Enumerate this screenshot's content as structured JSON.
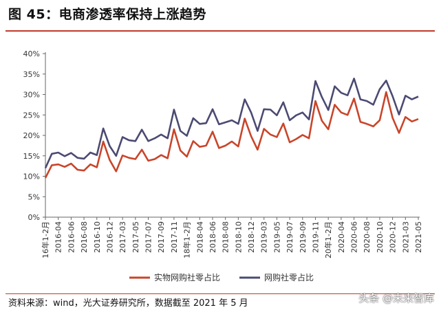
{
  "header": {
    "title": "图 45：电商渗透率保持上涨趋势"
  },
  "footer": {
    "source": "资料来源：wind，光大证券研究所，数据截至 2021 年 5 月",
    "watermark": "头条 @未来智库"
  },
  "colors": {
    "accent": "#c0392b",
    "series_physical": "#c9452a",
    "series_online": "#4b4a72"
  },
  "chart_data": {
    "type": "line",
    "ylim": [
      0,
      40
    ],
    "y_ticks": [
      "0%",
      "5%",
      "10%",
      "15%",
      "20%",
      "25%",
      "30%",
      "35%",
      "40%"
    ],
    "x_tick_labels": [
      "16年1-2月",
      "2016-04",
      "2016-06",
      "2016-08",
      "2016-10",
      "2016-12",
      "2017-03",
      "2017-05",
      "2017-07",
      "2017-09",
      "2017-11",
      "18年1-2月",
      "2018-04",
      "2018-06",
      "2018-08",
      "2018-10",
      "2018-12",
      "2019-03",
      "2019-05",
      "2019-07",
      "2019-09",
      "2019-11",
      "20年1-2月",
      "2020-04",
      "2020-06",
      "2020-08",
      "2020-10",
      "2020-12",
      "2021-03",
      "2021-05"
    ],
    "x": [
      "16年1-2月",
      "2016-03",
      "2016-04",
      "2016-05",
      "2016-06",
      "2016-07",
      "2016-08",
      "2016-09",
      "2016-10",
      "2016-11",
      "2016-12",
      "17年1-2月",
      "2017-03",
      "2017-04",
      "2017-05",
      "2017-06",
      "2017-07",
      "2017-08",
      "2017-09",
      "2017-10",
      "2017-11",
      "2017-12",
      "18年1-2月",
      "2018-03",
      "2018-04",
      "2018-05",
      "2018-06",
      "2018-07",
      "2018-08",
      "2018-09",
      "2018-10",
      "2018-11",
      "2018-12",
      "19年1-2月",
      "2019-03",
      "2019-04",
      "2019-05",
      "2019-06",
      "2019-07",
      "2019-08",
      "2019-09",
      "2019-10",
      "2019-11",
      "2019-12",
      "20年1-2月",
      "2020-03",
      "2020-04",
      "2020-05",
      "2020-06",
      "2020-07",
      "2020-08",
      "2020-09",
      "2020-10",
      "2020-11",
      "2020-12",
      "21年1-2月",
      "2021-03",
      "2021-04",
      "2021-05"
    ],
    "series": [
      {
        "name": "实物网购社零占比",
        "values": [
          9.6,
          12.7,
          12.9,
          12.3,
          13.1,
          11.6,
          11.4,
          12.9,
          12.2,
          18.5,
          14.0,
          11.2,
          15.1,
          14.5,
          14.2,
          16.5,
          13.8,
          14.2,
          15.2,
          14.4,
          21.5,
          16.3,
          14.8,
          18.6,
          17.2,
          17.5,
          20.9,
          16.9,
          17.5,
          18.5,
          17.3,
          24.1,
          19.8,
          16.5,
          21.6,
          20.2,
          19.6,
          22.9,
          18.3,
          19.1,
          20.1,
          19.3,
          28.4,
          23.6,
          21.5,
          27.5,
          25.6,
          25.0,
          29.0,
          23.3,
          22.8,
          22.2,
          23.7,
          30.6,
          24.3,
          20.6,
          24.5,
          23.4,
          24.0
        ]
      },
      {
        "name": "网购社零占比",
        "values": [
          12.0,
          15.5,
          15.8,
          14.9,
          15.7,
          14.5,
          14.3,
          15.8,
          15.2,
          21.7,
          17.4,
          15.0,
          19.6,
          18.8,
          18.6,
          21.4,
          18.6,
          19.3,
          20.2,
          19.3,
          26.3,
          21.1,
          19.9,
          24.2,
          22.8,
          23.0,
          26.4,
          22.7,
          23.2,
          23.7,
          22.8,
          28.8,
          25.6,
          21.1,
          26.4,
          26.3,
          24.9,
          28.1,
          23.7,
          24.9,
          25.6,
          23.9,
          33.3,
          29.4,
          26.2,
          32.0,
          30.4,
          29.8,
          33.9,
          28.8,
          28.4,
          27.5,
          31.3,
          33.4,
          29.6,
          25.1,
          29.7,
          28.8,
          29.5
        ]
      }
    ],
    "legend_position": "bottom-center",
    "grid": false
  }
}
